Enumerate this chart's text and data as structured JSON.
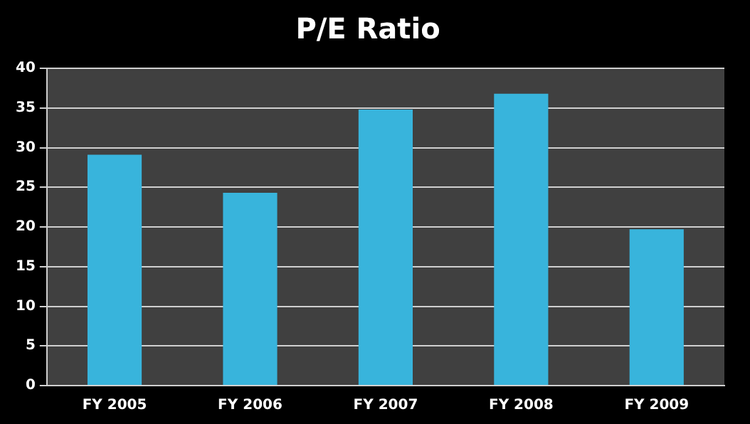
{
  "chart_data": {
    "type": "bar",
    "title": "P/E Ratio",
    "categories": [
      "FY 2005",
      "FY 2006",
      "FY 2007",
      "FY 2008",
      "FY 2009"
    ],
    "values": [
      29.1,
      24.3,
      34.8,
      36.8,
      19.7
    ],
    "color": "#38b4dc",
    "ylim": [
      0,
      40
    ],
    "yticks": [
      0,
      5,
      10,
      15,
      20,
      25,
      30,
      35,
      40
    ],
    "grid": "y",
    "legend": false
  }
}
